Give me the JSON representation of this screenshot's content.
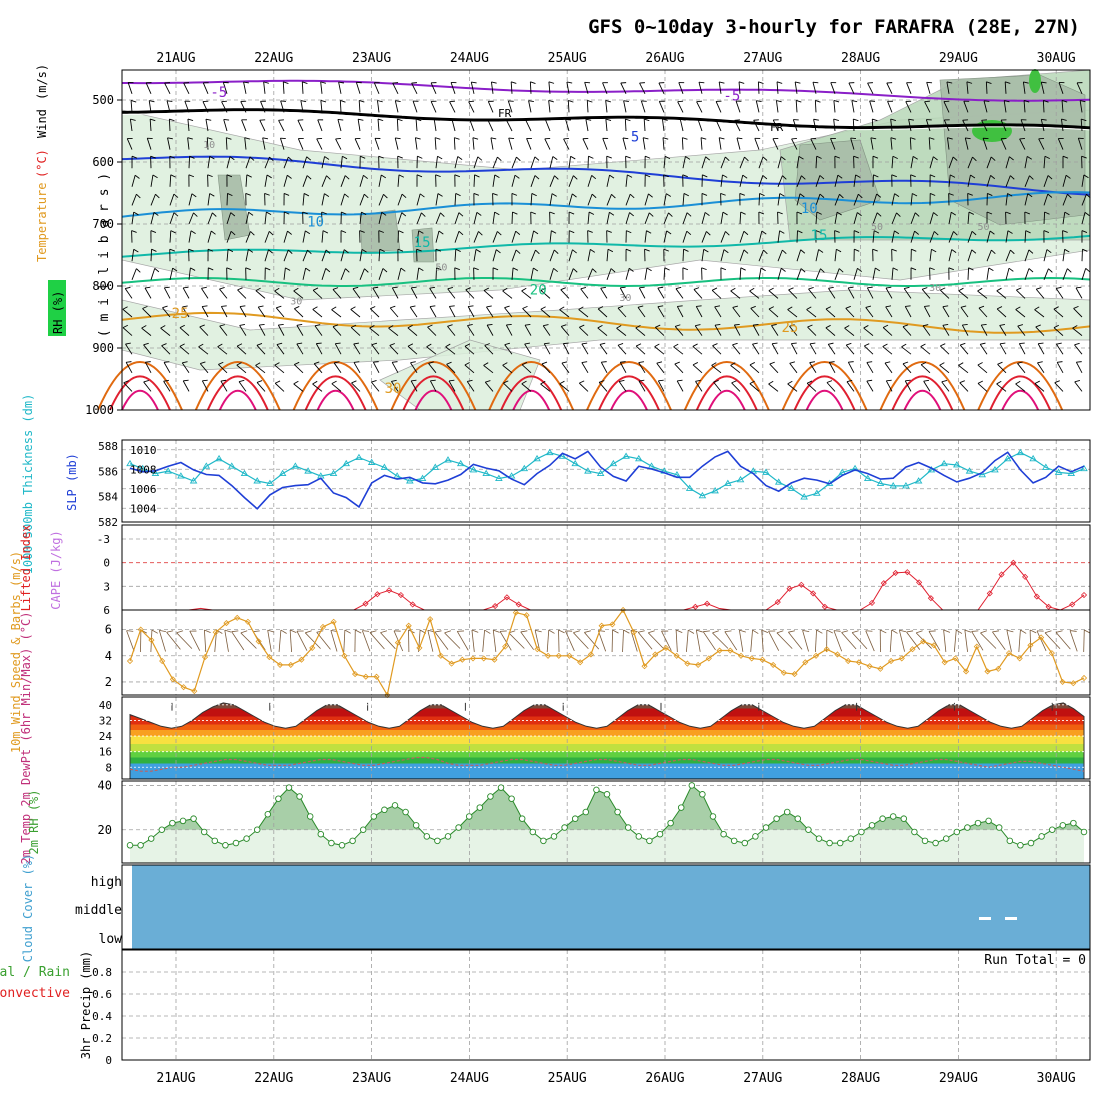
{
  "chart_data": {
    "type": "meteogram",
    "title": "GFS 0~10day 3-hourly for FARAFRA (28E, 27N)",
    "dates": [
      "21AUG",
      "22AUG",
      "23AUG",
      "24AUG",
      "25AUG",
      "26AUG",
      "27AUG",
      "28AUG",
      "29AUG",
      "30AUG"
    ],
    "colors": {
      "grid": "#a0a0a0",
      "purple": "#8a1fc8",
      "blue": "#1f3fd6",
      "lightblue": "#1a8fd6",
      "teal": "#10b8a8",
      "green": "#18c080",
      "orange": "#e09a20",
      "darkorange": "#e06a10",
      "red": "#e02030",
      "magenta": "#e0107a",
      "cyan": "#20b8c8",
      "rhgreen": "#3aa030",
      "cloud": "#6aaed6",
      "precipgreen": "#3aa030",
      "precipred": "#e02020"
    },
    "upper_panel": {
      "y_ticks": [
        "500",
        "600",
        "700",
        "800",
        "900",
        "1000"
      ],
      "ylabel": "( m i l l i b a r s )",
      "legend": {
        "rh": "RH (%)",
        "temperature": "Temperature",
        "celsius": "(°C)",
        "wind": "Wind",
        "ms": "(m/s)"
      },
      "freezing_label": "FR",
      "isotherm_labels": [
        {
          "text": "-5",
          "pos": [
            0.1,
            0.08
          ]
        },
        {
          "text": "-5",
          "pos": [
            0.63,
            0.09
          ]
        },
        {
          "text": "5",
          "pos": [
            0.53,
            0.21
          ]
        },
        {
          "text": "10",
          "pos": [
            0.2,
            0.46
          ]
        },
        {
          "text": "10",
          "pos": [
            0.71,
            0.42
          ]
        },
        {
          "text": "15",
          "pos": [
            0.31,
            0.52
          ]
        },
        {
          "text": "15",
          "pos": [
            0.72,
            0.5
          ]
        },
        {
          "text": "20",
          "pos": [
            0.43,
            0.66
          ]
        },
        {
          "text": "25",
          "pos": [
            0.06,
            0.73
          ]
        },
        {
          "text": "25",
          "pos": [
            0.69,
            0.77
          ]
        },
        {
          "text": "30",
          "pos": [
            0.28,
            0.95
          ]
        }
      ],
      "rh_labels": [
        {
          "text": "10",
          "pos": [
            0.09,
            0.23
          ]
        },
        {
          "text": "30",
          "pos": [
            0.18,
            0.69
          ]
        },
        {
          "text": "50",
          "pos": [
            0.33,
            0.59
          ]
        },
        {
          "text": "30",
          "pos": [
            0.52,
            0.68
          ]
        },
        {
          "text": "50",
          "pos": [
            0.78,
            0.47
          ]
        },
        {
          "text": "50",
          "pos": [
            0.89,
            0.47
          ]
        },
        {
          "text": "30",
          "pos": [
            0.84,
            0.65
          ]
        }
      ]
    },
    "thickness_panel": {
      "left_ticks": [
        "582",
        "584",
        "586",
        "588"
      ],
      "right_ticks": [
        "1004",
        "1006",
        "1008",
        "1010"
      ],
      "ylabel_thickness": "1000-500mb Thickness (dm)",
      "ylabel_slp": "SLP (mb)",
      "thickness": [
        586.4,
        586.0,
        585.6,
        585.8,
        585.4,
        585.0,
        586.2,
        586.8,
        586.2,
        585.6,
        585.0,
        584.8,
        585.6,
        586.2,
        585.8,
        585.4,
        585.6,
        586.4,
        586.9,
        586.5,
        586.1,
        585.4,
        585.0,
        585.2,
        586.1,
        586.7,
        586.4,
        585.9,
        585.6,
        585.2,
        585.4,
        586.0,
        586.8,
        587.3,
        587.0,
        586.4,
        585.8,
        585.6,
        586.4,
        587.0,
        586.8,
        586.2,
        585.8,
        585.5,
        584.4,
        583.8,
        584.2,
        584.8,
        585.1,
        585.8,
        585.7,
        584.9,
        584.4,
        583.7,
        584.0,
        584.8,
        585.7,
        586.0,
        585.2,
        584.8,
        584.6,
        584.6,
        585.0,
        585.9,
        586.4,
        586.3,
        585.8,
        585.5,
        585.9,
        586.8,
        587.3,
        586.8,
        586.1,
        585.7,
        585.6,
        586.0
      ],
      "slp": [
        1008.4,
        1008.0,
        1008.1,
        1008.6,
        1009.0,
        1008.2,
        1007.7,
        1007.6,
        1006.5,
        1005.2,
        1004.0,
        1005.5,
        1006.3,
        1006.5,
        1006.6,
        1007.3,
        1005.7,
        1005.2,
        1004.2,
        1006.8,
        1007.6,
        1007.2,
        1007.4,
        1006.8,
        1006.7,
        1007.1,
        1007.7,
        1008.8,
        1008.4,
        1008.1,
        1007.2,
        1006.6,
        1007.8,
        1008.7,
        1010.0,
        1009.4,
        1010.2,
        1008.5,
        1007.5,
        1007.0,
        1008.6,
        1008.3,
        1007.9,
        1007.4,
        1007.4,
        1008.6,
        1009.6,
        1010.2,
        1008.6,
        1007.8,
        1006.5,
        1005.9,
        1006.8,
        1007.3,
        1007.1,
        1006.7,
        1007.6,
        1008.2,
        1007.8,
        1007.2,
        1007.3,
        1008.5,
        1009.0,
        1008.4,
        1007.6,
        1006.9,
        1007.3,
        1007.9,
        1009.2,
        1010.1,
        1008.2,
        1006.8,
        1007.4,
        1008.6,
        1008.0,
        1008.6
      ],
      "slp_range": [
        1003,
        1011
      ],
      "thickness_range": [
        582,
        588
      ]
    },
    "cape_panel": {
      "left_ticks": [
        "-3",
        "0",
        "3",
        "6"
      ],
      "ylabel_li": "Lifted Index",
      "ylabel_cape": "CAPE (J/kg)",
      "lifted_index": [
        6,
        6,
        6,
        6,
        6,
        6,
        5.8,
        6,
        6,
        6,
        6,
        6,
        6,
        6,
        6,
        6,
        6,
        6,
        6,
        6,
        5.2,
        4.0,
        3.5,
        4.1,
        5.3,
        6,
        6,
        6,
        6,
        6,
        6,
        5.5,
        4.4,
        5.3,
        6,
        6,
        6,
        6,
        6,
        6,
        6,
        6,
        6,
        6,
        6,
        6,
        6,
        6,
        5.6,
        5.2,
        5.8,
        6,
        6,
        6,
        6,
        5.0,
        3.3,
        2.8,
        3.9,
        5.6,
        6,
        6,
        6,
        5.1,
        2.6,
        1.3,
        1.2,
        2.5,
        4.5,
        6,
        6,
        6,
        6,
        3.9,
        1.5,
        0.0,
        1.8,
        4.3,
        5.6,
        6,
        5.3,
        4.1
      ]
    },
    "wind_panel": {
      "y_ticks": [
        "2",
        "4",
        "6"
      ],
      "ylabel": "10m Wind Speed & Barbs (m/s)",
      "speed": [
        3.6,
        6.0,
        5.2,
        3.6,
        2.2,
        1.6,
        1.3,
        3.9,
        5.8,
        6.5,
        6.9,
        6.6,
        5.1,
        3.9,
        3.3,
        3.3,
        3.7,
        4.6,
        6.2,
        6.6,
        4.0,
        2.6,
        2.4,
        2.4,
        1.0,
        5.0,
        6.3,
        4.6,
        6.8,
        4.0,
        3.4,
        3.7,
        3.8,
        3.8,
        3.7,
        4.7,
        7.3,
        7.1,
        4.5,
        4.0,
        4.0,
        4.0,
        3.5,
        4.1,
        6.3,
        6.4,
        7.5,
        5.8,
        3.2,
        4.1,
        4.6,
        4.0,
        3.4,
        3.3,
        3.8,
        4.4,
        4.4,
        4.0,
        3.8,
        3.7,
        3.3,
        2.7,
        2.6,
        3.5,
        4.0,
        4.5,
        4.1,
        3.6,
        3.5,
        3.2,
        3.0,
        3.6,
        3.8,
        4.5,
        5.1,
        4.8,
        3.5,
        3.8,
        2.8,
        4.7,
        2.8,
        3.0,
        4.2,
        3.8,
        4.8,
        5.4,
        4.2,
        2.0,
        1.9,
        2.3
      ],
      "range": [
        1,
        7.5
      ]
    },
    "temp_panel": {
      "y_ticks": [
        "8",
        "16",
        "24",
        "32",
        "40"
      ],
      "ylabel": "2m Temp 2m DewPt (6hr Min/Max) (°C)",
      "range": [
        2,
        44
      ],
      "temp": [
        35,
        33,
        31,
        29,
        28,
        29,
        32,
        36,
        39,
        41,
        40,
        37,
        34,
        31,
        29,
        28,
        29,
        33,
        37,
        40,
        40,
        37,
        34,
        31,
        29,
        28,
        29,
        33,
        37,
        40,
        40,
        37,
        34,
        31,
        29,
        28,
        29,
        33,
        37,
        40,
        40,
        37,
        34,
        31,
        29,
        28,
        29,
        33,
        37,
        40,
        40,
        37,
        34,
        31,
        29,
        28,
        29,
        33,
        37,
        40,
        40,
        37,
        34,
        31,
        29,
        28,
        29,
        33,
        37,
        40,
        40,
        37,
        34,
        31,
        29,
        28,
        29,
        33,
        37,
        40,
        40,
        37,
        34,
        31,
        29,
        28,
        29,
        33,
        37,
        40,
        41,
        38,
        34
      ],
      "dew": [
        7,
        6,
        6,
        7,
        8,
        8,
        9,
        10,
        11,
        12,
        12,
        11,
        10,
        9,
        9,
        9,
        10,
        11,
        12,
        12,
        11,
        10,
        9,
        9,
        10,
        11,
        12,
        13,
        13,
        12,
        10,
        9,
        9,
        9,
        10,
        11,
        12,
        12,
        11,
        10,
        9,
        9,
        10,
        11,
        12,
        12,
        11,
        10,
        9,
        9,
        10,
        11,
        12,
        12,
        11,
        10,
        9,
        9,
        10,
        11,
        12,
        12,
        11,
        10,
        9,
        9,
        10,
        11,
        12,
        12,
        11,
        10,
        9,
        9,
        10,
        11,
        12,
        12,
        11,
        10,
        9,
        8,
        9,
        10,
        11,
        11,
        10,
        9,
        8,
        7,
        6
      ]
    },
    "rh_panel": {
      "y_ticks": [
        "20",
        "40"
      ],
      "ylabel": "2m RH (%)",
      "range": [
        5,
        42
      ],
      "values": [
        13,
        13,
        16,
        20,
        23,
        24,
        25,
        19,
        15,
        13,
        14,
        16,
        20,
        27,
        34,
        39,
        35,
        26,
        18,
        14,
        13,
        15,
        20,
        26,
        29,
        31,
        28,
        22,
        17,
        15,
        17,
        21,
        26,
        30,
        35,
        39,
        34,
        25,
        19,
        15,
        17,
        21,
        25,
        28,
        38,
        36,
        28,
        21,
        17,
        15,
        18,
        23,
        30,
        40,
        36,
        26,
        18,
        15,
        14,
        17,
        21,
        25,
        28,
        25,
        20,
        16,
        14,
        14,
        16,
        19,
        22,
        25,
        26,
        25,
        19,
        15,
        14,
        16,
        19,
        21,
        23,
        24,
        21,
        15,
        13,
        14,
        17,
        20,
        22,
        23,
        19
      ]
    },
    "cloud_panel": {
      "levels": [
        "high",
        "middle",
        "low"
      ],
      "ylabel": "Cloud Cover (%)"
    },
    "precip_panel": {
      "y_ticks": [
        "0",
        "0.2",
        "0.4",
        "0.6",
        "0.8"
      ],
      "ylabel": "3hr Precip (mm)",
      "legend_total": "Total / Rain",
      "legend_convective": "Convective",
      "run_total": "Run Total = 0"
    }
  }
}
